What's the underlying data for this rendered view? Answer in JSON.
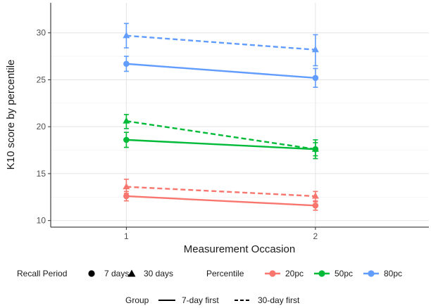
{
  "chart_data": {
    "type": "line",
    "xlabel": "Measurement Occasion",
    "ylabel": "K10 score by percentile",
    "x_ticks": [
      "1",
      "2"
    ],
    "y_ticks": [
      10,
      15,
      20,
      25,
      30
    ],
    "xlim": [
      0.6,
      2.6
    ],
    "ylim": [
      9.3,
      33.2
    ],
    "series": [
      {
        "name": "20pc 7 days",
        "percentile": "20pc",
        "recall": "7 days",
        "group": "7-day first",
        "color": "#F8766D",
        "points": [
          {
            "x": 1,
            "y": 12.6,
            "lo": 12.1,
            "hi": 13.1
          },
          {
            "x": 2,
            "y": 11.6,
            "lo": 11.1,
            "hi": 12.1
          }
        ]
      },
      {
        "name": "20pc 30 days",
        "percentile": "20pc",
        "recall": "30 days",
        "group": "30-day first",
        "color": "#F8766D",
        "points": [
          {
            "x": 1,
            "y": 13.6,
            "lo": 12.9,
            "hi": 14.4
          },
          {
            "x": 2,
            "y": 12.6,
            "lo": 12.0,
            "hi": 13.1
          }
        ]
      },
      {
        "name": "50pc 7 days",
        "percentile": "50pc",
        "recall": "7 days",
        "group": "7-day first",
        "color": "#00BA38",
        "points": [
          {
            "x": 1,
            "y": 18.6,
            "lo": 17.8,
            "hi": 19.4
          },
          {
            "x": 2,
            "y": 17.6,
            "lo": 16.9,
            "hi": 18.3
          }
        ]
      },
      {
        "name": "50pc 30 days",
        "percentile": "50pc",
        "recall": "30 days",
        "group": "30-day first",
        "color": "#00BA38",
        "points": [
          {
            "x": 1,
            "y": 20.6,
            "lo": 19.8,
            "hi": 21.3
          },
          {
            "x": 2,
            "y": 17.6,
            "lo": 16.6,
            "hi": 18.6
          }
        ]
      },
      {
        "name": "80pc 7 days",
        "percentile": "80pc",
        "recall": "7 days",
        "group": "7-day first",
        "color": "#619CFF",
        "points": [
          {
            "x": 1,
            "y": 26.7,
            "lo": 25.9,
            "hi": 27.5
          },
          {
            "x": 2,
            "y": 25.2,
            "lo": 24.2,
            "hi": 26.2
          }
        ]
      },
      {
        "name": "80pc 30 days",
        "percentile": "80pc",
        "recall": "30 days",
        "group": "30-day first",
        "color": "#619CFF",
        "points": [
          {
            "x": 1,
            "y": 29.7,
            "lo": 28.4,
            "hi": 31.0
          },
          {
            "x": 2,
            "y": 28.2,
            "lo": 26.5,
            "hi": 29.8
          }
        ]
      }
    ],
    "legend": {
      "recall_title": "Recall Period",
      "recall_items": [
        {
          "label": "7 days",
          "shape": "circle"
        },
        {
          "label": "30 days",
          "shape": "triangle"
        }
      ],
      "percentile_title": "Percentile",
      "percentile_items": [
        {
          "label": "20pc",
          "color": "#F8766D"
        },
        {
          "label": "50pc",
          "color": "#00BA38"
        },
        {
          "label": "80pc",
          "color": "#619CFF"
        }
      ],
      "group_title": "Group",
      "group_items": [
        {
          "label": "7-day first",
          "dash": "solid"
        },
        {
          "label": "30-day first",
          "dash": "dashed"
        }
      ]
    }
  }
}
